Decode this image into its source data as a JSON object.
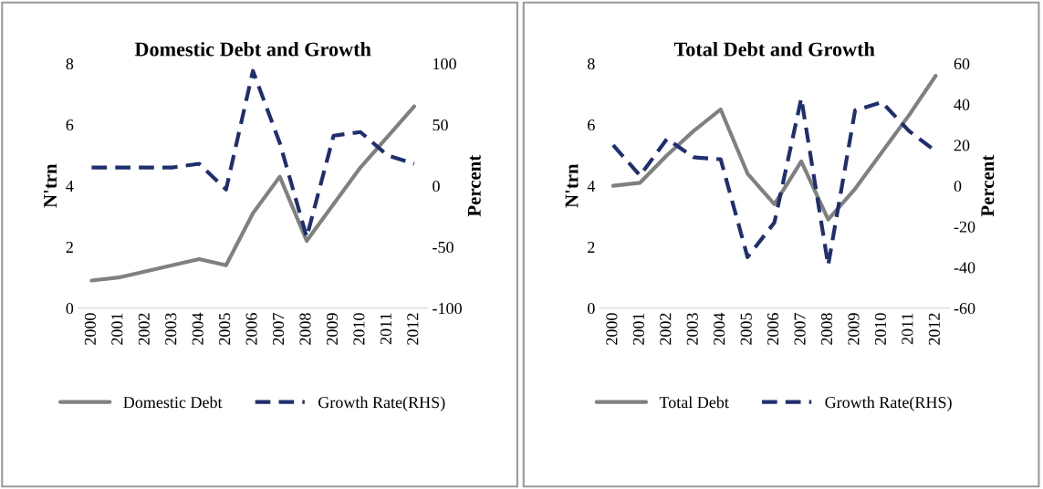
{
  "chart_data": [
    {
      "type": "line",
      "title": "Domestic Debt and Growth",
      "ylabel": "N'trn",
      "y2label": "Percent",
      "categories": [
        "2000",
        "2001",
        "2002",
        "2003",
        "2004",
        "2005",
        "2006",
        "2007",
        "2008",
        "2009",
        "2010",
        "2011",
        "2012"
      ],
      "series": [
        {
          "name": "Domestic Debt",
          "color": "#808080",
          "line_style": "solid",
          "values": [
            0.9,
            1.0,
            1.2,
            1.4,
            1.6,
            1.4,
            3.1,
            4.3,
            2.2,
            3.4,
            4.6,
            5.6,
            6.6
          ]
        },
        {
          "name": "Growth Rate(RHS)",
          "color": "#1f2f6e",
          "line_style": "dashed",
          "axis": "y2",
          "values": [
            15,
            15,
            15,
            15,
            18,
            -3,
            94,
            35,
            -42,
            41,
            44,
            25,
            18
          ]
        }
      ],
      "ylim": [
        0,
        8
      ],
      "yticks": [
        0,
        2,
        4,
        6,
        8
      ],
      "y2lim": [
        -100,
        100
      ],
      "y2ticks": [
        -100,
        -50,
        0,
        50,
        100
      ],
      "grid": false,
      "legend": "bottom",
      "marker": "none"
    },
    {
      "type": "line",
      "title": "Total Debt and Growth",
      "ylabel": "N'trn",
      "y2label": "Percent",
      "categories": [
        "2000",
        "2001",
        "2002",
        "2003",
        "2004",
        "2005",
        "2006",
        "2007",
        "2008",
        "2009",
        "2010",
        "2011",
        "2012"
      ],
      "series": [
        {
          "name": "Total Debt",
          "color": "#808080",
          "line_style": "solid",
          "values": [
            4.0,
            4.1,
            5.0,
            5.8,
            6.5,
            4.4,
            3.4,
            4.8,
            2.9,
            3.9,
            5.1,
            6.3,
            7.6
          ]
        },
        {
          "name": "Growth Rate(RHS)",
          "color": "#1f2f6e",
          "line_style": "dashed",
          "axis": "y2",
          "values": [
            20,
            5,
            23,
            14,
            13,
            -35,
            -18,
            43,
            -39,
            37,
            41,
            27,
            17
          ]
        }
      ],
      "ylim": [
        0,
        8
      ],
      "yticks": [
        0,
        2,
        4,
        6,
        8
      ],
      "y2lim": [
        -60,
        60
      ],
      "y2ticks": [
        -60,
        -40,
        -20,
        0,
        20,
        40,
        60
      ],
      "grid": false,
      "legend": "bottom",
      "marker": "none"
    }
  ]
}
